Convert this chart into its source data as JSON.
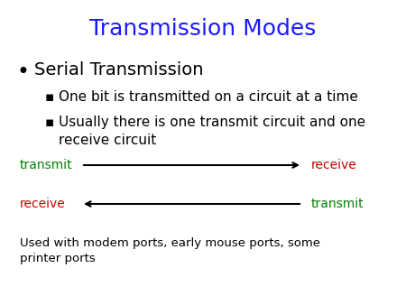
{
  "title": "Transmission Modes",
  "title_color": "#1a1aff",
  "title_fontsize": 18,
  "bg_color": "#ffffff",
  "bullet_text": "Serial Transmission",
  "bullet_fontsize": 14,
  "bullet_color": "#000000",
  "sub_bullet1": "One bit is transmitted on a circuit at a time",
  "sub_bullet2": "Usually there is one transmit circuit and one\nreceive circuit",
  "sub_bullet_fontsize": 11,
  "sub_bullet_color": "#000000",
  "arrow1_label_left": "transmit",
  "arrow1_label_right": "receive",
  "arrow1_left_color": "#008000",
  "arrow1_right_color": "#cc0000",
  "arrow2_label_left": "receive",
  "arrow2_label_right": "transmit",
  "arrow2_left_color": "#cc0000",
  "arrow2_right_color": "#008000",
  "arrow_label_fontsize": 10,
  "footer_text": "Used with modem ports, early mouse ports, some\nprinter ports",
  "footer_fontsize": 9.5,
  "footer_color": "#000000"
}
